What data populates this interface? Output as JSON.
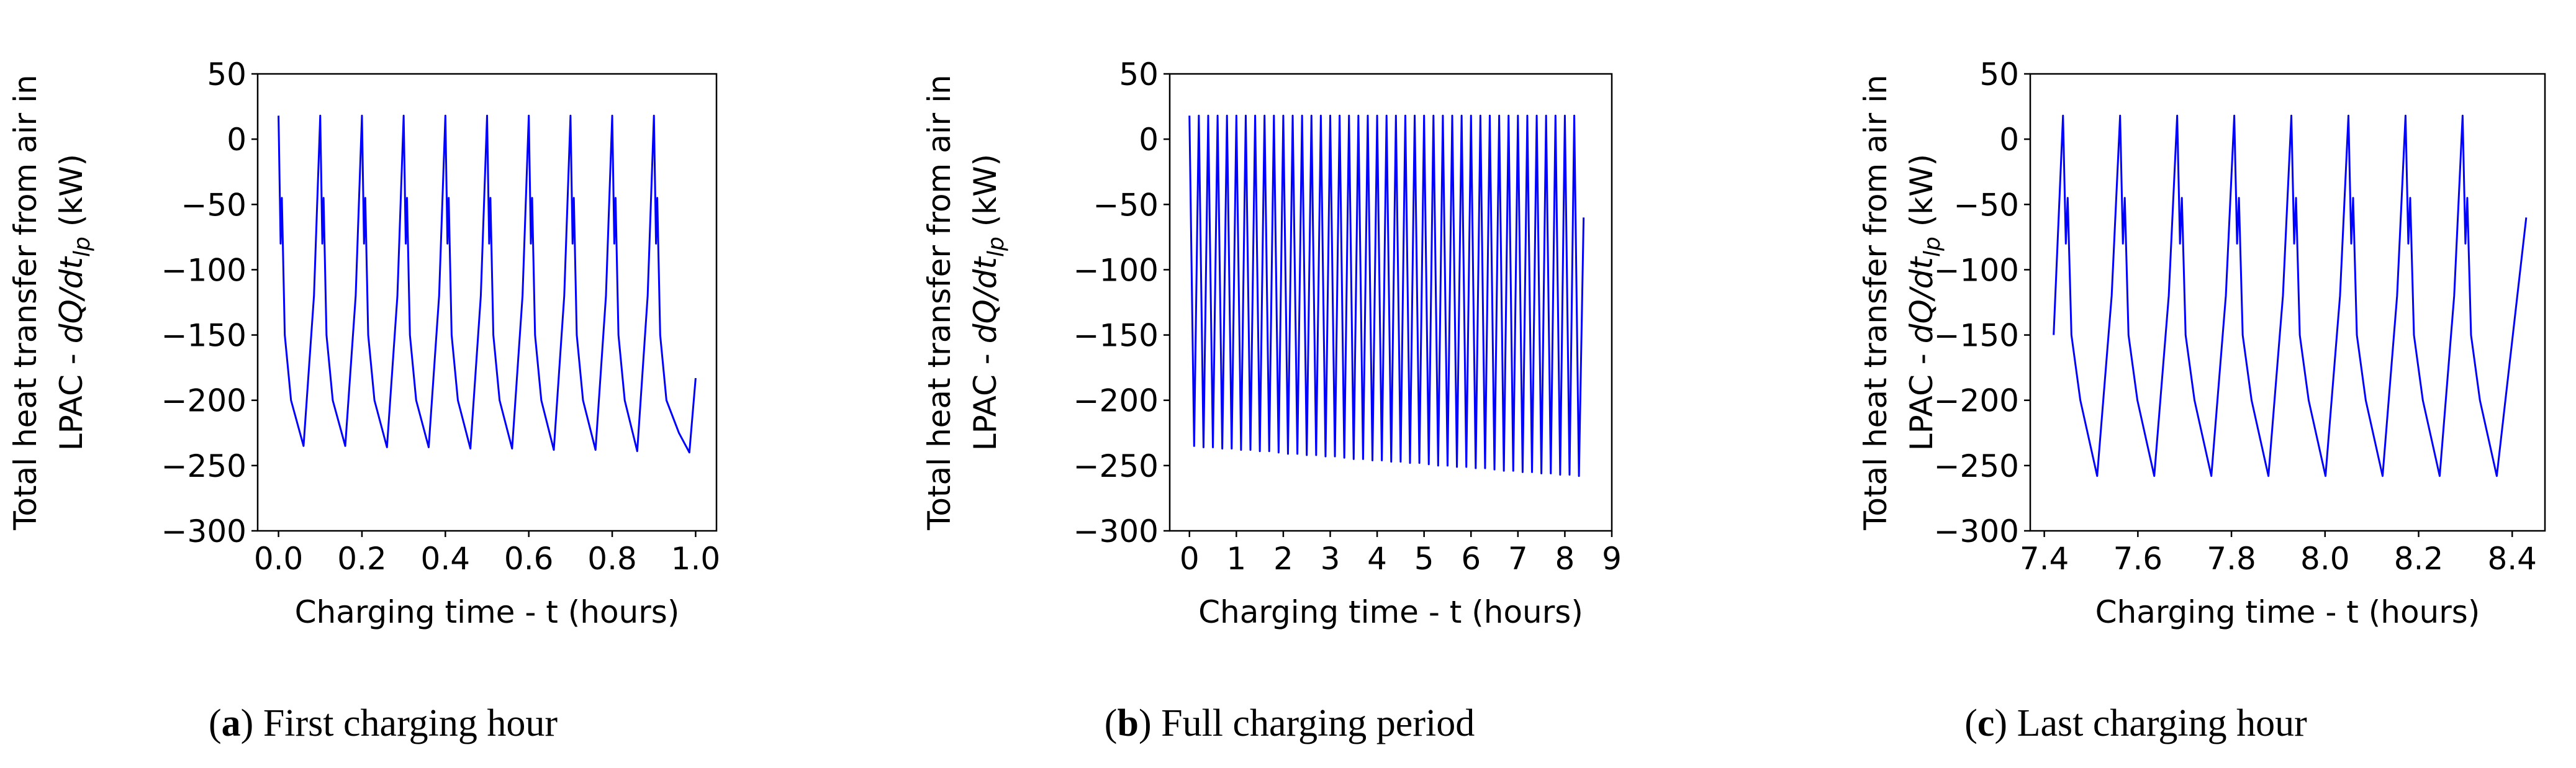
{
  "chart_data": [
    {
      "type": "line",
      "y_label": {
        "line1": "Total heat transfer from air in",
        "prefix": "LPAC - ",
        "math": "dQ/dt",
        "sub": "lp",
        "suffix": " (kW)"
      },
      "x_label": "Charging time - t (hours)",
      "caption": [
        "(",
        "a",
        ") First charging hour"
      ],
      "xlim": [
        -0.05,
        1.05
      ],
      "ylim": [
        -300,
        50
      ],
      "xticks": [
        {
          "value": 0,
          "label": "0.0"
        },
        0.2,
        0.4,
        0.6,
        0.8,
        {
          "value": 1,
          "label": "1.0"
        }
      ],
      "yticks": [
        50,
        0,
        {
          "value": -50,
          "label": "−50"
        },
        {
          "value": -100,
          "label": "−100"
        },
        {
          "value": -150,
          "label": "−150"
        },
        {
          "value": -200,
          "label": "−200"
        },
        {
          "value": -250,
          "label": "−250"
        },
        {
          "value": -300,
          "label": "−300"
        }
      ],
      "x": [
        0,
        0.005,
        0.008,
        0.015,
        0.03,
        0.06,
        0.085,
        0.1,
        0.105,
        0.108,
        0.115,
        0.13,
        0.16,
        0.185,
        0.2,
        0.205,
        0.208,
        0.215,
        0.23,
        0.26,
        0.285,
        0.3,
        0.305,
        0.308,
        0.315,
        0.33,
        0.36,
        0.385,
        0.4,
        0.405,
        0.408,
        0.415,
        0.43,
        0.46,
        0.485,
        0.5,
        0.505,
        0.508,
        0.515,
        0.53,
        0.56,
        0.585,
        0.6,
        0.605,
        0.608,
        0.615,
        0.63,
        0.66,
        0.685,
        0.7,
        0.705,
        0.708,
        0.715,
        0.73,
        0.76,
        0.785,
        0.8,
        0.805,
        0.808,
        0.815,
        0.83,
        0.86,
        0.885,
        0.9,
        0.905,
        0.908,
        0.915,
        0.93,
        0.96,
        0.985,
        1.0
      ],
      "series": [
        {
          "color": "#0000ff",
          "values": [
            18,
            -80,
            -45,
            -150,
            -200,
            -235,
            -120,
            18,
            -80,
            -45,
            -150,
            -200,
            -235,
            -120,
            18,
            -80,
            -45,
            -150,
            -200,
            -236,
            -120,
            18,
            -80,
            -45,
            -150,
            -200,
            -236,
            -120,
            18,
            -80,
            -45,
            -150,
            -200,
            -237,
            -120,
            18,
            -80,
            -45,
            -150,
            -200,
            -237,
            -120,
            18,
            -80,
            -45,
            -150,
            -200,
            -238,
            -120,
            18,
            -80,
            -45,
            -150,
            -200,
            -238,
            -120,
            18,
            -80,
            -45,
            -150,
            -200,
            -239,
            -120,
            18,
            -80,
            -45,
            -150,
            -200,
            -225,
            -240,
            -183
          ]
        }
      ]
    },
    {
      "type": "line",
      "y_label": {
        "line1": "Total heat transfer from air in",
        "prefix": "LPAC - ",
        "math": "dQ/dt",
        "sub": "lp",
        "suffix": " (kW)"
      },
      "x_label": "Charging time - t (hours)",
      "caption": [
        "(",
        "b",
        ") Full charging period"
      ],
      "xlim": [
        -0.42,
        9.0
      ],
      "ylim": [
        -300,
        50
      ],
      "xticks": [
        0,
        1,
        2,
        3,
        4,
        5,
        6,
        7,
        8,
        9
      ],
      "yticks": [
        50,
        0,
        {
          "value": -50,
          "label": "−50"
        },
        {
          "value": -100,
          "label": "−100"
        },
        {
          "value": -150,
          "label": "−150"
        },
        {
          "value": -200,
          "label": "−200"
        },
        {
          "value": -250,
          "label": "−250"
        },
        {
          "value": -300,
          "label": "−300"
        }
      ],
      "x": [
        0,
        0.1,
        0.2,
        0.3,
        0.4,
        0.5,
        0.6,
        0.7,
        0.8,
        0.9,
        1,
        1.1,
        1.2,
        1.3,
        1.4,
        1.5,
        1.6,
        1.7,
        1.8,
        1.9,
        2,
        2.1,
        2.2,
        2.3,
        2.4,
        2.5,
        2.6,
        2.7,
        2.8,
        2.9,
        3,
        3.1,
        3.2,
        3.3,
        3.4,
        3.5,
        3.6,
        3.7,
        3.8,
        3.9,
        4,
        4.1,
        4.2,
        4.3,
        4.4,
        4.5,
        4.6,
        4.7,
        4.8,
        4.9,
        5,
        5.1,
        5.2,
        5.3,
        5.4,
        5.5,
        5.6,
        5.7,
        5.8,
        5.9,
        6,
        6.1,
        6.2,
        6.3,
        6.4,
        6.5,
        6.6,
        6.7,
        6.8,
        6.9,
        7,
        7.1,
        7.2,
        7.3,
        7.4,
        7.5,
        7.6,
        7.7,
        7.8,
        7.9,
        8,
        8.1,
        8.2,
        8.3,
        8.4
      ],
      "series": [
        {
          "color": "#0000ff",
          "values": [
            18,
            -235,
            18,
            -236,
            18,
            -236,
            18,
            -237,
            18,
            -237,
            18,
            -238,
            18,
            -238,
            18,
            -239,
            18,
            -239,
            18,
            -240,
            18,
            -241,
            18,
            -241,
            18,
            -242,
            18,
            -242,
            18,
            -243,
            18,
            -243,
            18,
            -244,
            18,
            -245,
            18,
            -245,
            18,
            -246,
            18,
            -246,
            18,
            -247,
            18,
            -247,
            18,
            -248,
            18,
            -248,
            18,
            -249,
            18,
            -250,
            18,
            -250,
            18,
            -251,
            18,
            -251,
            18,
            -252,
            18,
            -252,
            18,
            -253,
            18,
            -254,
            18,
            -254,
            18,
            -255,
            18,
            -255,
            18,
            -256,
            18,
            -256,
            18,
            -257,
            18,
            -257,
            18,
            -258,
            -60
          ]
        }
      ]
    },
    {
      "type": "line",
      "y_label": {
        "line1": "Total heat transfer from air in",
        "prefix": "LPAC - ",
        "math": "dQ/dt",
        "sub": "lp",
        "suffix": " (kW)"
      },
      "x_label": "Charging time - t (hours)",
      "caption": [
        "(",
        "c",
        ") Last charging hour"
      ],
      "xlim": [
        7.37,
        8.47
      ],
      "ylim": [
        -300,
        50
      ],
      "xticks": [
        7.4,
        7.6,
        7.8,
        {
          "value": 8,
          "label": "8.0"
        },
        8.2,
        8.4
      ],
      "yticks": [
        50,
        0,
        {
          "value": -50,
          "label": "−50"
        },
        {
          "value": -100,
          "label": "−100"
        },
        {
          "value": -150,
          "label": "−150"
        },
        {
          "value": -200,
          "label": "−200"
        },
        {
          "value": -250,
          "label": "−250"
        },
        {
          "value": -300,
          "label": "−300"
        }
      ],
      "x": [
        7.42,
        7.44,
        7.446,
        7.45,
        7.458,
        7.477,
        7.513,
        7.544,
        7.562,
        7.568,
        7.572,
        7.58,
        7.599,
        7.635,
        7.666,
        7.684,
        7.69,
        7.694,
        7.702,
        7.721,
        7.757,
        7.788,
        7.806,
        7.812,
        7.816,
        7.824,
        7.843,
        7.879,
        7.91,
        7.928,
        7.934,
        7.938,
        7.946,
        7.965,
        8.001,
        8.032,
        8.05,
        8.056,
        8.06,
        8.068,
        8.087,
        8.123,
        8.154,
        8.172,
        8.178,
        8.182,
        8.19,
        8.209,
        8.245,
        8.276,
        8.294,
        8.3,
        8.304,
        8.312,
        8.331,
        8.367,
        8.43
      ],
      "series": [
        {
          "color": "#0000ff",
          "values": [
            -150,
            18,
            -80,
            -45,
            -150,
            -200,
            -258,
            -120,
            18,
            -80,
            -45,
            -150,
            -200,
            -258,
            -120,
            18,
            -80,
            -45,
            -150,
            -200,
            -258,
            -120,
            18,
            -80,
            -45,
            -150,
            -200,
            -258,
            -120,
            18,
            -80,
            -45,
            -150,
            -200,
            -258,
            -120,
            18,
            -80,
            -45,
            -150,
            -200,
            -258,
            -120,
            18,
            -80,
            -45,
            -150,
            -200,
            -258,
            -120,
            18,
            -80,
            -45,
            -150,
            -200,
            -258,
            -60
          ]
        }
      ]
    }
  ]
}
